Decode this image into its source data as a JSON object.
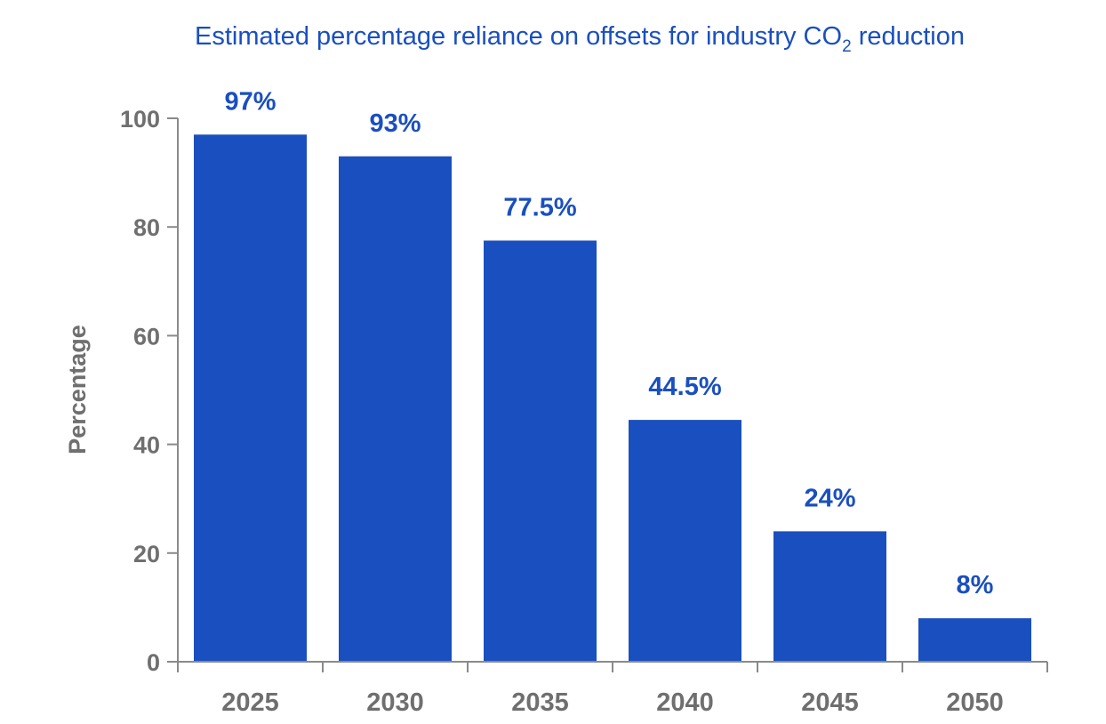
{
  "chart_data": {
    "type": "bar",
    "title": "Estimated percentage reliance on offsets for industry CO",
    "title_subscript": "2",
    "title_suffix": " reduction",
    "ylabel": "Percentage",
    "xlabel": "",
    "categories": [
      "2025",
      "2030",
      "2035",
      "2040",
      "2045",
      "2050"
    ],
    "values": [
      97,
      93,
      77.5,
      44.5,
      24,
      8
    ],
    "data_labels": [
      "97%",
      "93%",
      "77.5%",
      "44.5%",
      "24%",
      "8%"
    ],
    "ylim": [
      0,
      100
    ],
    "yticks": [
      0,
      20,
      40,
      60,
      80,
      100
    ],
    "grid": false,
    "legend": "none"
  },
  "colors": {
    "bar": "#1a4fbf",
    "title": "#1a4fbf",
    "data_label": "#1a4fbf",
    "axis_text": "#6f6f6f",
    "axis_line": "#8a8a8a"
  }
}
